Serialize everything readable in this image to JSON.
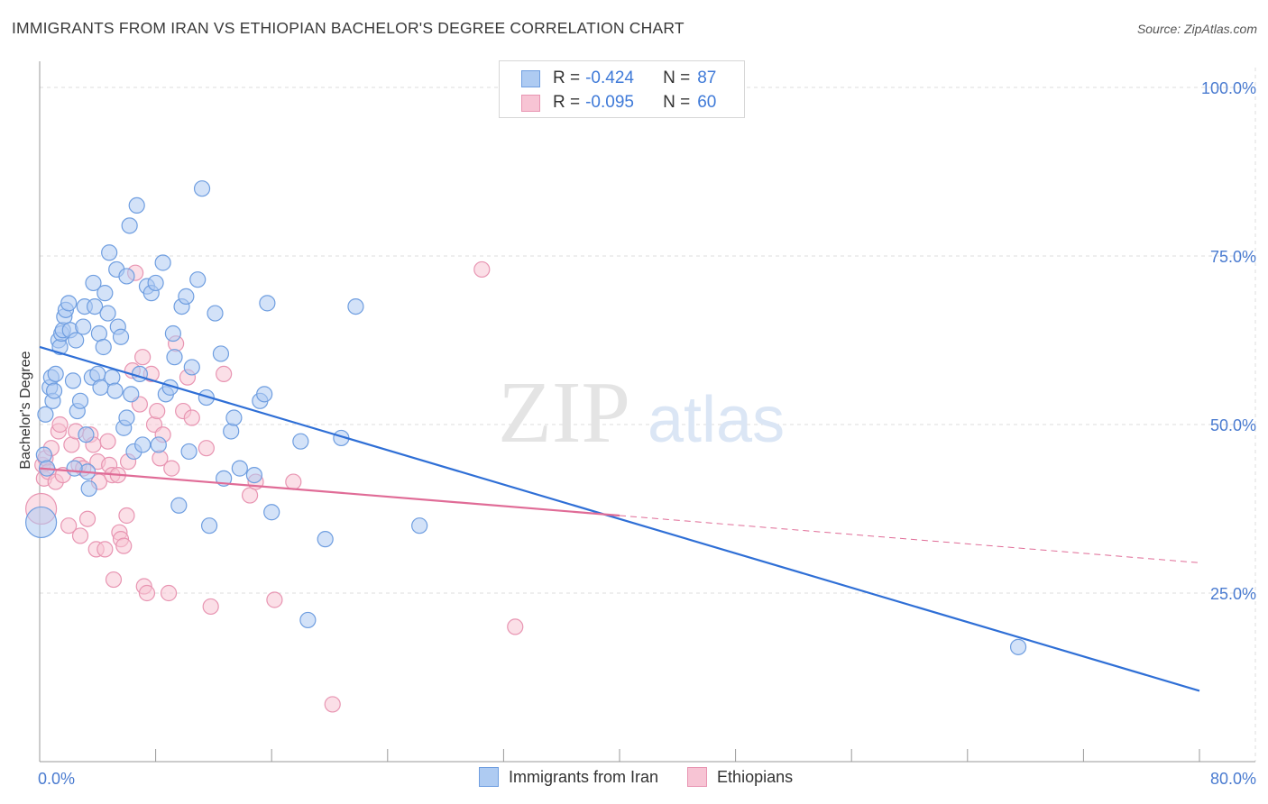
{
  "title": "IMMIGRANTS FROM IRAN VS ETHIOPIAN BACHELOR'S DEGREE CORRELATION CHART",
  "source": "Source: ZipAtlas.com",
  "watermark": {
    "zip": "ZIP",
    "atlas": "atlas"
  },
  "legend": {
    "rows": [
      {
        "r_label": "R =",
        "r_value": "-0.424",
        "n_label": "N =",
        "n_value": "87"
      },
      {
        "r_label": "R =",
        "r_value": "-0.095",
        "n_label": "N =",
        "n_value": "60"
      }
    ]
  },
  "bottom_legend": [
    "Immigrants from Iran",
    "Ethiopians"
  ],
  "colors": {
    "blue_fill": "#aecbf2",
    "blue_stroke": "#6f9ee0",
    "blue_line": "#2f6fd6",
    "pink_fill": "#f7c4d4",
    "pink_stroke": "#e895b2",
    "pink_line": "#e06c97",
    "tick_text": "#4a7bd0",
    "grid": "#dddddd"
  },
  "chart_data": {
    "type": "scatter",
    "xlabel": "",
    "ylabel": "Bachelor's Degree",
    "xlim": [
      0,
      80
    ],
    "ylim": [
      0,
      105
    ],
    "x_tick_labels": [
      "0.0%",
      "80.0%"
    ],
    "y_ticks": [
      25,
      50,
      75,
      100
    ],
    "y_tick_labels": [
      "25.0%",
      "50.0%",
      "75.0%",
      "100.0%"
    ],
    "grid": true,
    "series": [
      {
        "name": "Immigrants from Iran",
        "color": "#6f9ee0",
        "R": -0.424,
        "N": 87,
        "trend": {
          "x": [
            0,
            80
          ],
          "y": [
            61.5,
            10.5
          ],
          "dashed_from": null
        },
        "points": [
          [
            0.1,
            35.5
          ],
          [
            0.3,
            45.5
          ],
          [
            0.4,
            51.5
          ],
          [
            0.5,
            43.5
          ],
          [
            0.7,
            55.5
          ],
          [
            0.8,
            57.0
          ],
          [
            0.9,
            53.5
          ],
          [
            1.0,
            55.0
          ],
          [
            1.1,
            57.5
          ],
          [
            1.3,
            62.5
          ],
          [
            1.4,
            61.5
          ],
          [
            1.5,
            63.5
          ],
          [
            1.6,
            64.0
          ],
          [
            1.7,
            66.0
          ],
          [
            1.8,
            67.0
          ],
          [
            2.0,
            68.0
          ],
          [
            2.1,
            64.0
          ],
          [
            2.3,
            56.5
          ],
          [
            2.5,
            62.5
          ],
          [
            2.6,
            52.0
          ],
          [
            2.8,
            53.5
          ],
          [
            3.0,
            64.5
          ],
          [
            3.1,
            67.5
          ],
          [
            3.2,
            48.5
          ],
          [
            3.3,
            43.0
          ],
          [
            3.4,
            40.5
          ],
          [
            3.6,
            57.0
          ],
          [
            3.7,
            71.0
          ],
          [
            3.8,
            67.5
          ],
          [
            4.0,
            57.5
          ],
          [
            4.1,
            63.5
          ],
          [
            4.2,
            55.5
          ],
          [
            4.4,
            61.5
          ],
          [
            4.5,
            69.5
          ],
          [
            4.7,
            66.5
          ],
          [
            4.8,
            75.5
          ],
          [
            5.0,
            57.0
          ],
          [
            5.2,
            55.0
          ],
          [
            5.3,
            73.0
          ],
          [
            5.4,
            64.5
          ],
          [
            5.6,
            63.0
          ],
          [
            5.8,
            49.5
          ],
          [
            6.0,
            72.0
          ],
          [
            6.2,
            79.5
          ],
          [
            6.3,
            54.5
          ],
          [
            6.5,
            46.0
          ],
          [
            6.7,
            82.5
          ],
          [
            6.9,
            57.5
          ],
          [
            7.1,
            47.0
          ],
          [
            7.4,
            70.5
          ],
          [
            7.7,
            69.5
          ],
          [
            8.0,
            71.0
          ],
          [
            8.2,
            47.0
          ],
          [
            8.5,
            74.0
          ],
          [
            8.7,
            54.5
          ],
          [
            9.0,
            55.5
          ],
          [
            9.3,
            60.0
          ],
          [
            9.6,
            38.0
          ],
          [
            9.8,
            67.5
          ],
          [
            10.1,
            69.0
          ],
          [
            10.3,
            46.0
          ],
          [
            10.5,
            58.5
          ],
          [
            10.9,
            71.5
          ],
          [
            11.2,
            85.0
          ],
          [
            11.5,
            54.0
          ],
          [
            11.7,
            35.0
          ],
          [
            12.1,
            66.5
          ],
          [
            12.7,
            42.0
          ],
          [
            13.2,
            49.0
          ],
          [
            13.4,
            51.0
          ],
          [
            13.8,
            43.5
          ],
          [
            14.8,
            42.5
          ],
          [
            15.2,
            53.5
          ],
          [
            15.5,
            54.5
          ],
          [
            15.7,
            68.0
          ],
          [
            16.0,
            37.0
          ],
          [
            18.0,
            47.5
          ],
          [
            18.5,
            21.0
          ],
          [
            19.7,
            33.0
          ],
          [
            20.8,
            48.0
          ],
          [
            21.8,
            67.5
          ],
          [
            26.2,
            35.0
          ],
          [
            67.5,
            17.0
          ],
          [
            2.4,
            43.5
          ],
          [
            6.0,
            51.0
          ],
          [
            12.5,
            60.5
          ],
          [
            9.2,
            63.5
          ]
        ]
      },
      {
        "name": "Ethiopians",
        "color": "#e895b2",
        "R": -0.095,
        "N": 60,
        "trend": {
          "x": [
            0,
            80
          ],
          "y": [
            43.5,
            29.5
          ],
          "dashed_from": 40
        },
        "points": [
          [
            0.1,
            37.5
          ],
          [
            0.2,
            44.0
          ],
          [
            0.3,
            42.0
          ],
          [
            0.4,
            45.0
          ],
          [
            0.6,
            43.0
          ],
          [
            0.8,
            46.5
          ],
          [
            1.1,
            41.5
          ],
          [
            1.3,
            49.0
          ],
          [
            1.4,
            50.0
          ],
          [
            1.6,
            42.5
          ],
          [
            2.0,
            35.0
          ],
          [
            2.2,
            47.0
          ],
          [
            2.5,
            49.0
          ],
          [
            2.7,
            44.0
          ],
          [
            2.8,
            33.5
          ],
          [
            3.0,
            43.5
          ],
          [
            3.3,
            36.0
          ],
          [
            3.5,
            48.5
          ],
          [
            3.7,
            47.0
          ],
          [
            3.9,
            31.5
          ],
          [
            4.0,
            44.5
          ],
          [
            4.1,
            41.5
          ],
          [
            4.5,
            31.5
          ],
          [
            4.8,
            44.0
          ],
          [
            5.0,
            42.5
          ],
          [
            5.1,
            27.0
          ],
          [
            5.4,
            42.5
          ],
          [
            5.5,
            34.0
          ],
          [
            5.6,
            33.0
          ],
          [
            5.8,
            32.0
          ],
          [
            6.0,
            36.5
          ],
          [
            6.1,
            44.5
          ],
          [
            6.4,
            58.0
          ],
          [
            6.6,
            72.5
          ],
          [
            6.9,
            53.0
          ],
          [
            7.1,
            60.0
          ],
          [
            7.2,
            26.0
          ],
          [
            7.4,
            25.0
          ],
          [
            7.7,
            57.5
          ],
          [
            7.9,
            50.0
          ],
          [
            8.1,
            52.0
          ],
          [
            8.3,
            45.0
          ],
          [
            8.5,
            48.5
          ],
          [
            8.9,
            25.0
          ],
          [
            9.1,
            43.5
          ],
          [
            9.4,
            62.0
          ],
          [
            9.9,
            52.0
          ],
          [
            10.2,
            57.0
          ],
          [
            10.5,
            51.0
          ],
          [
            11.5,
            46.5
          ],
          [
            11.8,
            23.0
          ],
          [
            12.7,
            57.5
          ],
          [
            14.5,
            39.5
          ],
          [
            14.9,
            41.5
          ],
          [
            16.2,
            24.0
          ],
          [
            17.5,
            41.5
          ],
          [
            20.2,
            8.5
          ],
          [
            30.5,
            73.0
          ],
          [
            32.8,
            20.0
          ],
          [
            4.7,
            47.5
          ]
        ]
      }
    ]
  }
}
